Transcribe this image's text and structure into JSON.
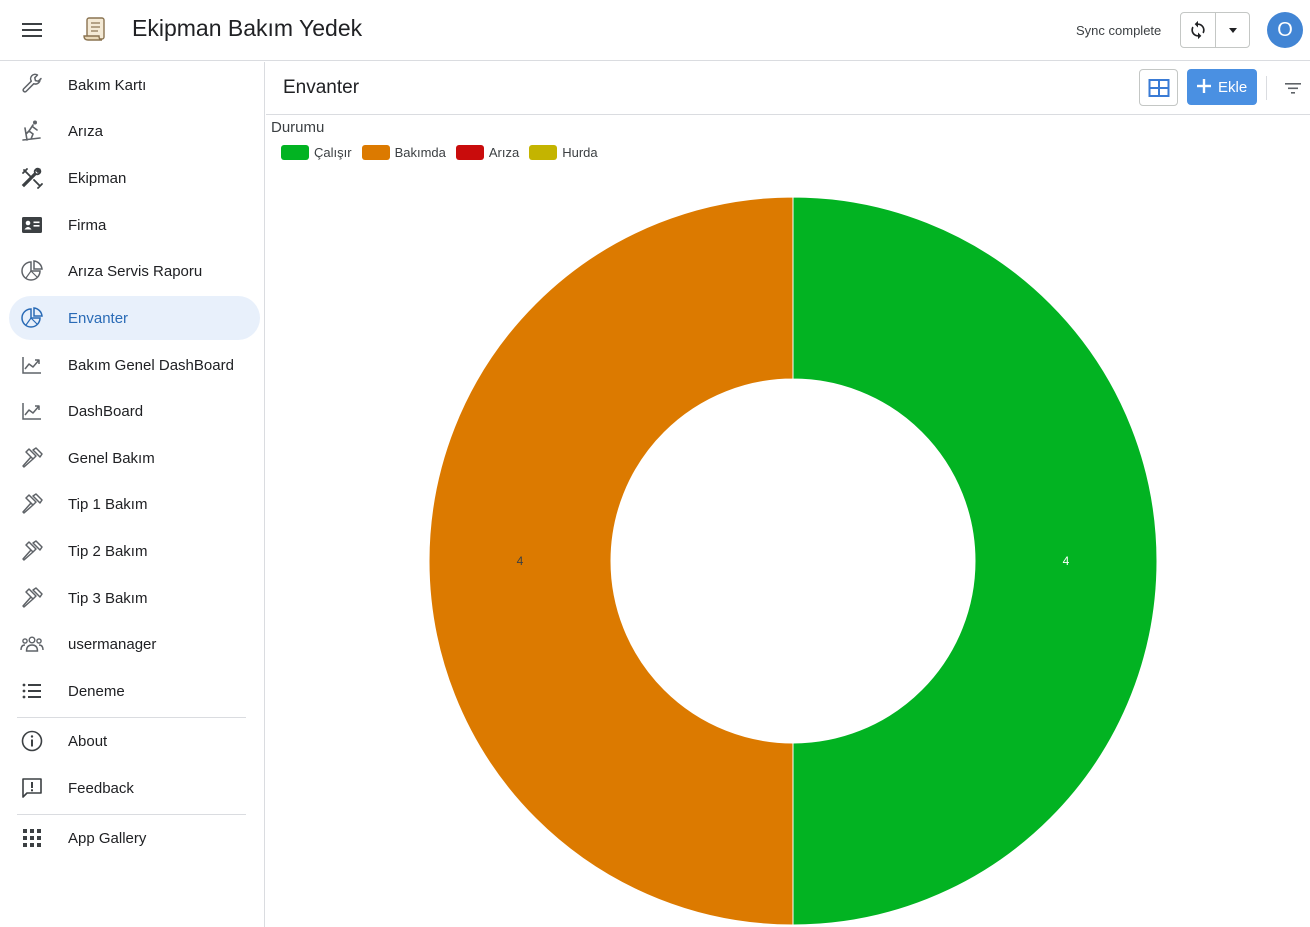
{
  "app": {
    "title": "Ekipman Bakım Yedek",
    "sync_status": "Sync complete",
    "avatar_initial": "O"
  },
  "sidebar": {
    "items": [
      {
        "label": "Bakım Kartı",
        "icon": "wrench-icon"
      },
      {
        "label": "Arıza",
        "icon": "skier-icon"
      },
      {
        "label": "Ekipman",
        "icon": "tools-icon"
      },
      {
        "label": "Firma",
        "icon": "contact-card-icon"
      },
      {
        "label": "Arıza Servis Raporu",
        "icon": "pie-chart-icon"
      },
      {
        "label": "Envanter",
        "icon": "pie-chart-icon",
        "active": true
      },
      {
        "label": "Bakım Genel DashBoard",
        "icon": "trend-chart-icon"
      },
      {
        "label": "DashBoard",
        "icon": "trend-chart-icon"
      },
      {
        "label": "Genel Bakım",
        "icon": "hammer-icon"
      },
      {
        "label": "Tip 1 Bakım",
        "icon": "hammer-icon"
      },
      {
        "label": "Tip 2 Bakım",
        "icon": "hammer-icon"
      },
      {
        "label": "Tip 3 Bakım",
        "icon": "hammer-icon"
      },
      {
        "label": "usermanager",
        "icon": "users-icon"
      },
      {
        "label": "Deneme",
        "icon": "list-icon"
      }
    ],
    "footer_items": [
      {
        "label": "About",
        "icon": "info-icon"
      },
      {
        "label": "Feedback",
        "icon": "feedback-icon"
      }
    ],
    "gallery_item": {
      "label": "App Gallery",
      "icon": "grid-icon"
    }
  },
  "view": {
    "title": "Envanter",
    "add_label": "Ekle"
  },
  "colors": {
    "accent": "#4a90e2",
    "active_bg": "#e8f0fb",
    "active_text": "#2a6bb6"
  },
  "chart_data": {
    "type": "pie",
    "donut": true,
    "title": "Durumu",
    "legend_position": "top-left",
    "categories": [
      "Çalışır",
      "Bakımda",
      "Arıza",
      "Hurda"
    ],
    "values": [
      4,
      4,
      0,
      0
    ],
    "colors": [
      "#02b322",
      "#dc7a00",
      "#c90c0c",
      "#c4b400"
    ]
  }
}
